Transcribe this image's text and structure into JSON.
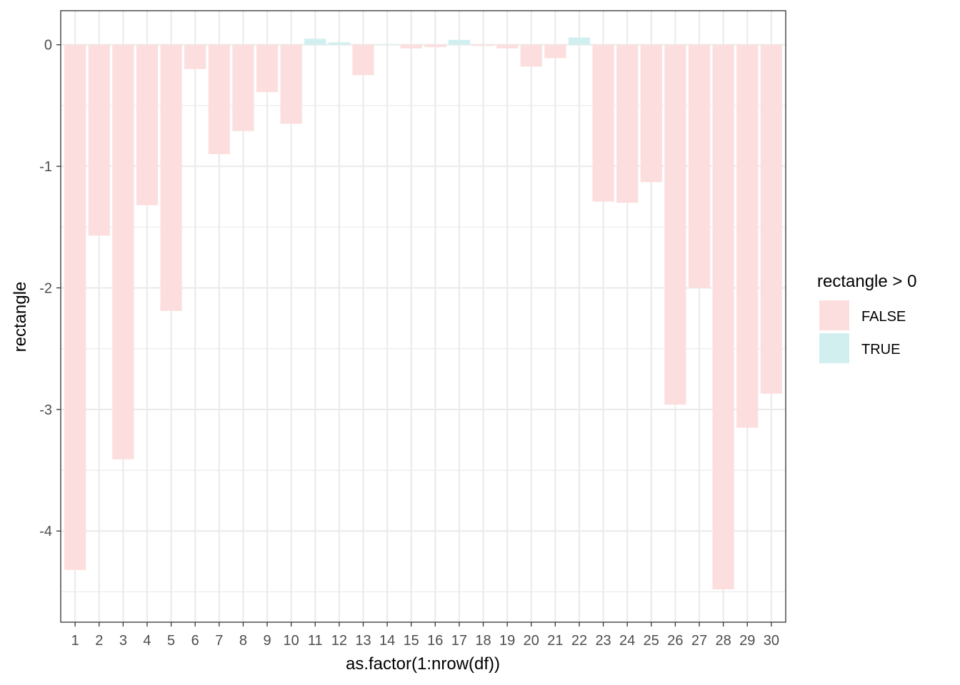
{
  "chart_data": {
    "type": "bar",
    "xlabel": "as.factor(1:nrow(df))",
    "ylabel": "rectangle",
    "categories": [
      "1",
      "2",
      "3",
      "4",
      "5",
      "6",
      "7",
      "8",
      "9",
      "10",
      "11",
      "12",
      "13",
      "14",
      "15",
      "16",
      "17",
      "18",
      "19",
      "20",
      "21",
      "22",
      "23",
      "24",
      "25",
      "26",
      "27",
      "28",
      "29",
      "30"
    ],
    "values": [
      -4.32,
      -1.57,
      -3.41,
      -1.32,
      -2.19,
      -0.2,
      -0.9,
      -0.71,
      -0.39,
      -0.65,
      0.05,
      0.02,
      -0.25,
      0.005,
      -0.03,
      -0.02,
      0.04,
      -0.01,
      -0.03,
      -0.18,
      -0.11,
      0.06,
      -1.29,
      -1.3,
      -1.13,
      -2.96,
      -2.0,
      -4.48,
      -3.15,
      -2.87
    ],
    "ylim": [
      -4.75,
      0.28
    ],
    "y_ticks": [
      0,
      -1,
      -2,
      -3,
      -4
    ],
    "y_tick_labels": [
      "0",
      "-1",
      "-2",
      "-3",
      "-4"
    ],
    "grid": true,
    "legend": {
      "title": "rectangle > 0",
      "placement": "right",
      "entries": [
        {
          "label": "FALSE",
          "color": "#fddede"
        },
        {
          "label": "TRUE",
          "color": "#d2eff0"
        }
      ]
    },
    "colors": {
      "false": "#fddede",
      "true": "#d2eff0"
    }
  }
}
